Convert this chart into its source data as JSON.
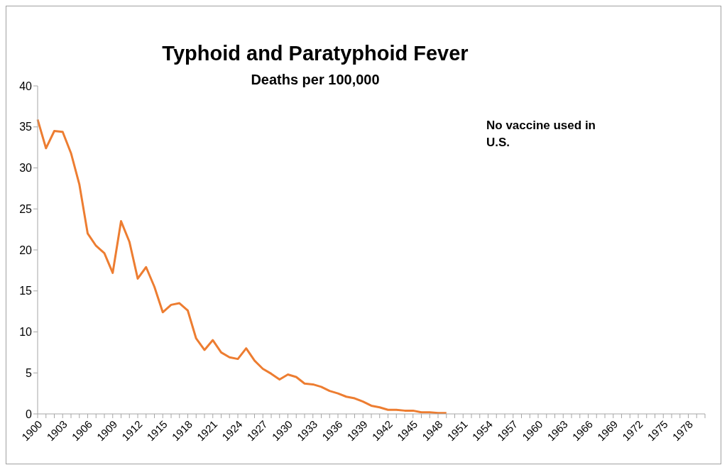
{
  "chart_data": {
    "type": "line",
    "title": "Typhoid and Paratyphoid Fever",
    "subtitle": "Deaths per 100,000",
    "annotations": [
      "No vaccine used in U.S."
    ],
    "categories": [
      "1900",
      null,
      null,
      "1903",
      null,
      null,
      "1906",
      null,
      null,
      "1909",
      null,
      null,
      "1912",
      null,
      null,
      "1915",
      null,
      null,
      "1918",
      null,
      null,
      "1921",
      null,
      null,
      "1924",
      null,
      null,
      "1927",
      null,
      null,
      "1930",
      null,
      null,
      "1933",
      null,
      null,
      "1936",
      null,
      null,
      "1939",
      null,
      null,
      "1942",
      null,
      null,
      "1945",
      null,
      null,
      "1948",
      null,
      null,
      "1951",
      null,
      null,
      "1954",
      null,
      null,
      "1957",
      null,
      null,
      "1960",
      null,
      null,
      "1963",
      null,
      null,
      "1966",
      null,
      null,
      "1969",
      null,
      null,
      "1972",
      null,
      null,
      "1975",
      null,
      null,
      "1978",
      null,
      null
    ],
    "series": [
      {
        "color": "#ed7d31",
        "values": [
          35.9,
          32.4,
          34.5,
          34.4,
          31.8,
          28,
          22,
          20.5,
          19.6,
          17.2,
          23.5,
          21,
          16.5,
          17.9,
          15.5,
          12.4,
          13.3,
          13.5,
          12.6,
          9.2,
          7.8,
          9.0,
          7.5,
          6.9,
          6.7,
          8.0,
          6.5,
          5.5,
          4.9,
          4.2,
          4.8,
          4.5,
          3.7,
          3.6,
          3.3,
          2.8,
          2.5,
          2.1,
          1.9,
          1.5,
          1.0,
          0.8,
          0.5,
          0.5,
          0.4,
          0.4,
          0.2,
          0.2,
          0.1,
          0.1,
          null,
          null,
          null,
          null,
          null,
          null,
          null,
          null,
          null,
          null,
          null,
          null,
          null,
          null,
          null,
          null,
          null,
          null,
          null,
          null,
          null,
          null,
          null,
          null,
          null,
          null,
          null,
          null,
          null,
          null,
          null
        ]
      }
    ],
    "ylim": [
      0,
      40
    ],
    "yticks": [
      0,
      5,
      10,
      15,
      20,
      25,
      30,
      35,
      40
    ],
    "grid": false,
    "legend": false,
    "marker": "none",
    "line_style": "solid"
  }
}
